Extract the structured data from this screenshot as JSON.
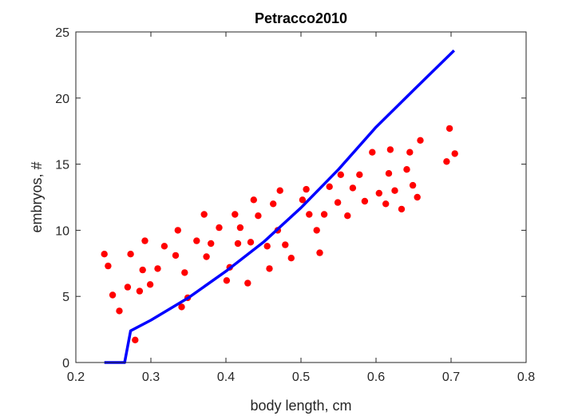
{
  "chart_data": {
    "type": "scatter",
    "title": "Petracco2010",
    "xlabel": "body length, cm",
    "ylabel": "embryos, #",
    "xlim": [
      0.2,
      0.8
    ],
    "ylim": [
      0,
      25
    ],
    "x_ticks": [
      "0.2",
      "0.3",
      "0.4",
      "0.5",
      "0.6",
      "0.7",
      "0.8"
    ],
    "y_ticks": [
      "0",
      "5",
      "10",
      "15",
      "20",
      "25"
    ],
    "grid": false,
    "legend": "none",
    "series": [
      {
        "kind": "scatter",
        "color": "#ff0000",
        "points": [
          [
            0.238,
            8.2
          ],
          [
            0.243,
            7.3
          ],
          [
            0.249,
            5.1
          ],
          [
            0.258,
            3.9
          ],
          [
            0.269,
            5.7
          ],
          [
            0.273,
            8.2
          ],
          [
            0.279,
            1.7
          ],
          [
            0.285,
            5.4
          ],
          [
            0.289,
            7.0
          ],
          [
            0.292,
            9.2
          ],
          [
            0.299,
            5.9
          ],
          [
            0.309,
            7.1
          ],
          [
            0.318,
            8.8
          ],
          [
            0.333,
            8.1
          ],
          [
            0.336,
            10.0
          ],
          [
            0.341,
            4.2
          ],
          [
            0.345,
            6.8
          ],
          [
            0.349,
            4.9
          ],
          [
            0.361,
            9.2
          ],
          [
            0.371,
            11.2
          ],
          [
            0.374,
            8.0
          ],
          [
            0.38,
            9.0
          ],
          [
            0.391,
            10.2
          ],
          [
            0.401,
            6.2
          ],
          [
            0.405,
            7.2
          ],
          [
            0.412,
            11.2
          ],
          [
            0.416,
            9.0
          ],
          [
            0.419,
            10.2
          ],
          [
            0.429,
            6.0
          ],
          [
            0.433,
            9.1
          ],
          [
            0.437,
            12.3
          ],
          [
            0.443,
            11.1
          ],
          [
            0.455,
            8.8
          ],
          [
            0.458,
            7.1
          ],
          [
            0.463,
            12.0
          ],
          [
            0.469,
            10.0
          ],
          [
            0.472,
            13.0
          ],
          [
            0.479,
            8.9
          ],
          [
            0.487,
            7.9
          ],
          [
            0.502,
            12.3
          ],
          [
            0.507,
            13.1
          ],
          [
            0.511,
            11.2
          ],
          [
            0.521,
            10.0
          ],
          [
            0.525,
            8.3
          ],
          [
            0.531,
            11.2
          ],
          [
            0.538,
            13.3
          ],
          [
            0.549,
            12.1
          ],
          [
            0.553,
            14.2
          ],
          [
            0.562,
            11.1
          ],
          [
            0.569,
            13.2
          ],
          [
            0.578,
            14.2
          ],
          [
            0.585,
            12.2
          ],
          [
            0.595,
            15.9
          ],
          [
            0.604,
            12.8
          ],
          [
            0.613,
            12.0
          ],
          [
            0.617,
            14.3
          ],
          [
            0.619,
            16.1
          ],
          [
            0.625,
            13.0
          ],
          [
            0.634,
            11.6
          ],
          [
            0.641,
            14.6
          ],
          [
            0.645,
            15.9
          ],
          [
            0.649,
            13.4
          ],
          [
            0.655,
            12.5
          ],
          [
            0.659,
            16.8
          ],
          [
            0.694,
            15.2
          ],
          [
            0.698,
            17.7
          ],
          [
            0.705,
            15.8
          ]
        ]
      },
      {
        "kind": "line",
        "color": "#0000ff",
        "points": [
          [
            0.238,
            0.0
          ],
          [
            0.265,
            0.0
          ],
          [
            0.273,
            2.4
          ],
          [
            0.3,
            3.2
          ],
          [
            0.35,
            4.9
          ],
          [
            0.4,
            6.9
          ],
          [
            0.45,
            9.1
          ],
          [
            0.5,
            11.7
          ],
          [
            0.55,
            14.6
          ],
          [
            0.6,
            17.8
          ],
          [
            0.65,
            20.6
          ],
          [
            0.704,
            23.6
          ]
        ]
      }
    ]
  }
}
